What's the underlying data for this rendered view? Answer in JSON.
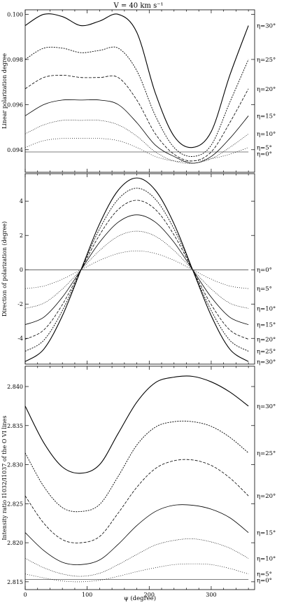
{
  "figure": {
    "title": "V = 40 km s⁻¹",
    "xlabel": "ψ (degree)",
    "xticks": [
      "0",
      "100",
      "200",
      "300"
    ]
  },
  "panels": [
    {
      "id": "linear",
      "ylabel": "Linear polarization degree",
      "yticks": [
        "0.094",
        "0.096",
        "0.098",
        "0.100"
      ],
      "labels": [
        "η=0°",
        "η=5°",
        "η=10°",
        "η=15°",
        "η=20°",
        "η=25°",
        "η=30°"
      ]
    },
    {
      "id": "direction",
      "ylabel": "Direction of polarization (degree)",
      "yticks": [
        "-4",
        "-2",
        "0",
        "2",
        "4"
      ],
      "labels": [
        "η=0°",
        "η=5°",
        "η=10°",
        "η=15°",
        "η=20°",
        "η=25°",
        "η=30°"
      ]
    },
    {
      "id": "ratio",
      "ylabel": "Intensity ratio I1032/I1037 of the O VI lines",
      "yticks": [
        "2.815",
        "2.820",
        "2.825",
        "2.830",
        "2.835",
        "2.840"
      ],
      "labels": [
        "η=0°",
        "η=5°",
        "η=10°",
        "η=15°",
        "η=20°",
        "η=25°",
        "η=30°"
      ]
    }
  ],
  "chart_data": [
    {
      "type": "line",
      "title": "V = 40 km s⁻¹",
      "xlabel": "ψ (degree)",
      "ylabel": "Linear polarization degree",
      "xlim": [
        0,
        370
      ],
      "ylim": [
        0.093,
        0.1002
      ],
      "x": [
        0,
        30,
        60,
        90,
        120,
        150,
        180,
        210,
        240,
        270,
        300,
        330,
        360
      ],
      "series": [
        {
          "name": "η=0°",
          "values": [
            0.0939,
            0.0939,
            0.0939,
            0.0939,
            0.0939,
            0.0939,
            0.0939,
            0.0939,
            0.0939,
            0.0939,
            0.0939,
            0.0939,
            0.0939
          ]
        },
        {
          "name": "η=5°",
          "values": [
            0.0941,
            0.0944,
            0.0945,
            0.0945,
            0.0945,
            0.0944,
            0.0941,
            0.0937,
            0.0935,
            0.0935,
            0.0936,
            0.0938,
            0.0941
          ]
        },
        {
          "name": "η=10°",
          "values": [
            0.0947,
            0.0951,
            0.0953,
            0.0953,
            0.0953,
            0.0951,
            0.0946,
            0.0939,
            0.0935,
            0.0934,
            0.0936,
            0.0941,
            0.0947
          ]
        },
        {
          "name": "η=15°",
          "values": [
            0.0955,
            0.096,
            0.0962,
            0.0962,
            0.0962,
            0.096,
            0.0952,
            0.0942,
            0.0937,
            0.0934,
            0.0937,
            0.0945,
            0.0955
          ]
        },
        {
          "name": "η=20°",
          "values": [
            0.0967,
            0.0972,
            0.0973,
            0.0972,
            0.0972,
            0.0972,
            0.0962,
            0.0947,
            0.0938,
            0.0935,
            0.0939,
            0.0952,
            0.0967
          ]
        },
        {
          "name": "η=25°",
          "values": [
            0.098,
            0.0985,
            0.0985,
            0.0983,
            0.0984,
            0.0985,
            0.0975,
            0.0955,
            0.0941,
            0.0937,
            0.0942,
            0.0961,
            0.098
          ]
        },
        {
          "name": "η=30°",
          "values": [
            0.0995,
            0.1,
            0.0999,
            0.0995,
            0.0997,
            0.1,
            0.0992,
            0.0965,
            0.0946,
            0.0941,
            0.0948,
            0.0973,
            0.0995
          ]
        }
      ]
    },
    {
      "type": "line",
      "xlabel": "ψ (degree)",
      "ylabel": "Direction of polarization (degree)",
      "xlim": [
        0,
        370
      ],
      "ylim": [
        -5.5,
        5.6
      ],
      "x": [
        0,
        30,
        60,
        90,
        120,
        150,
        180,
        210,
        240,
        270,
        300,
        330,
        360
      ],
      "series": [
        {
          "name": "η=0°",
          "values": [
            0,
            0,
            0,
            0,
            0,
            0,
            0,
            0,
            0,
            0,
            0,
            0,
            0
          ]
        },
        {
          "name": "η=5°",
          "values": [
            -1.1,
            -0.95,
            -0.55,
            0,
            0.55,
            0.95,
            1.1,
            0.95,
            0.55,
            0,
            -0.55,
            -0.95,
            -1.1
          ]
        },
        {
          "name": "η=10°",
          "values": [
            -2.25,
            -1.95,
            -1.12,
            0,
            1.12,
            1.95,
            2.25,
            1.95,
            1.12,
            0,
            -1.12,
            -1.95,
            -2.25
          ]
        },
        {
          "name": "η=15°",
          "values": [
            -3.2,
            -2.77,
            -1.6,
            0,
            1.6,
            2.77,
            3.2,
            2.77,
            1.6,
            0,
            -1.6,
            -2.77,
            -3.2
          ]
        },
        {
          "name": "η=20°",
          "values": [
            -4.05,
            -3.51,
            -2.03,
            0,
            2.03,
            3.51,
            4.05,
            3.51,
            2.03,
            0,
            -2.03,
            -3.51,
            -4.05
          ]
        },
        {
          "name": "η=25°",
          "values": [
            -4.75,
            -4.11,
            -2.38,
            0,
            2.38,
            4.11,
            4.75,
            4.11,
            2.38,
            0,
            -2.38,
            -4.11,
            -4.75
          ]
        },
        {
          "name": "η=30°",
          "values": [
            -5.35,
            -4.63,
            -2.68,
            0,
            2.68,
            4.63,
            5.35,
            4.63,
            2.68,
            0,
            -2.68,
            -4.63,
            -5.35
          ]
        }
      ]
    },
    {
      "type": "line",
      "xlabel": "ψ (degree)",
      "ylabel": "Intensity ratio I1032/I1037 of the O VI lines",
      "xlim": [
        0,
        370
      ],
      "ylim": [
        2.814,
        2.8426
      ],
      "x": [
        0,
        30,
        60,
        90,
        120,
        150,
        180,
        210,
        240,
        270,
        300,
        330,
        360
      ],
      "series": [
        {
          "name": "η=0°",
          "values": [
            2.8153,
            2.8153,
            2.8153,
            2.8153,
            2.8153,
            2.8153,
            2.8153,
            2.8153,
            2.8153,
            2.8153,
            2.8153,
            2.8153,
            2.8153
          ]
        },
        {
          "name": "η=5°",
          "values": [
            2.816,
            2.8155,
            2.8151,
            2.815,
            2.8152,
            2.8157,
            2.8163,
            2.8168,
            2.8172,
            2.8173,
            2.8172,
            2.8167,
            2.816
          ]
        },
        {
          "name": "η=10°",
          "values": [
            2.818,
            2.8168,
            2.816,
            2.8157,
            2.8161,
            2.8172,
            2.8185,
            2.8197,
            2.8203,
            2.8205,
            2.8201,
            2.8193,
            2.818
          ]
        },
        {
          "name": "η=15°",
          "values": [
            2.8213,
            2.819,
            2.8175,
            2.8172,
            2.8178,
            2.8198,
            2.8222,
            2.824,
            2.8248,
            2.8248,
            2.8243,
            2.8232,
            2.8213
          ]
        },
        {
          "name": "η=20°",
          "values": [
            2.826,
            2.8225,
            2.8204,
            2.82,
            2.8208,
            2.8238,
            2.8271,
            2.8295,
            2.8305,
            2.8306,
            2.8299,
            2.8283,
            2.826
          ]
        },
        {
          "name": "η=25°",
          "values": [
            2.8315,
            2.8272,
            2.8245,
            2.824,
            2.8249,
            2.8285,
            2.8325,
            2.8348,
            2.8355,
            2.8355,
            2.8349,
            2.8335,
            2.8315
          ]
        },
        {
          "name": "η=30°",
          "values": [
            2.8375,
            2.8328,
            2.8297,
            2.8289,
            2.83,
            2.834,
            2.838,
            2.8405,
            2.8412,
            2.8413,
            2.8406,
            2.8393,
            2.8375
          ]
        }
      ]
    }
  ]
}
